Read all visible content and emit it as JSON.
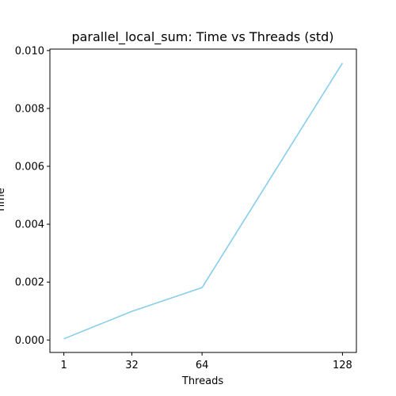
{
  "chart_data": {
    "type": "line",
    "title": "parallel_local_sum: Time vs Threads (std)",
    "xlabel": "Threads",
    "ylabel": "Time",
    "x": [
      1,
      32,
      64,
      128
    ],
    "series": [
      {
        "values": [
          4e-05,
          0.00099,
          0.00181,
          0.00957
        ],
        "color": "#87ceeb"
      }
    ],
    "xticks": [
      1,
      32,
      64,
      128
    ],
    "xtick_labels": [
      "1",
      "32",
      "64",
      "128"
    ],
    "yticks": [
      0.0,
      0.002,
      0.004,
      0.006,
      0.008,
      0.01
    ],
    "ytick_labels": [
      "0.000",
      "0.002",
      "0.004",
      "0.006",
      "0.008",
      "0.010"
    ],
    "xlim": [
      -5.35,
      134.35
    ],
    "ylim": [
      -0.00043,
      0.01005
    ],
    "grid": false,
    "legend": "none"
  }
}
